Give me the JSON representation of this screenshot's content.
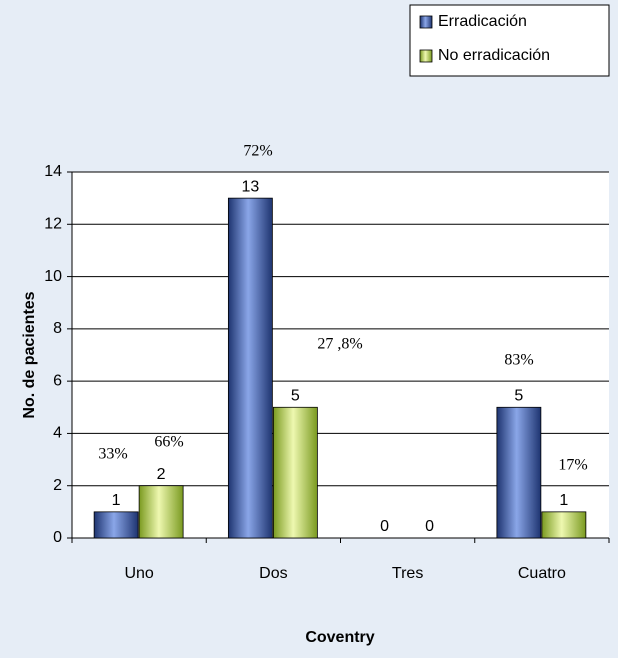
{
  "chart_data": {
    "type": "bar",
    "x_label": "Coventry",
    "y_label": "No. de pacientes",
    "categories": [
      "Uno",
      "Dos",
      "Tres",
      "Cuatro"
    ],
    "series": [
      {
        "name": "Erradicación",
        "color": "#3d5ca8",
        "values": [
          1,
          13,
          0,
          5
        ]
      },
      {
        "name": "No erradicación",
        "color": "#c4dc6c",
        "values": [
          2,
          5,
          0,
          1
        ]
      }
    ],
    "annotations": [
      "33%",
      "66%",
      "72%",
      "27 ,8%",
      "83%",
      "17%"
    ],
    "ylim": [
      0,
      14
    ],
    "yticks": [
      0,
      2,
      4,
      6,
      8,
      10,
      12,
      14
    ],
    "grid": true,
    "legend": "top-right"
  }
}
